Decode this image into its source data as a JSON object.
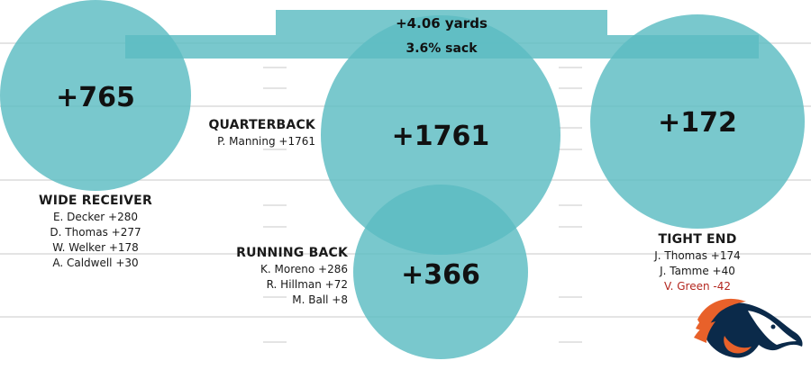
{
  "banner": {
    "yards": "+4.06 yards",
    "sack": "3.6% sack"
  },
  "groups": [
    {
      "key": "wr",
      "value": "+765",
      "heading": "WIDE RECEIVER",
      "players": [
        "E. Decker +280",
        "D. Thomas +277",
        "W. Welker +178",
        "A. Caldwell +30"
      ]
    },
    {
      "key": "qb",
      "value": "+1761",
      "heading": "QUARTERBACK",
      "players": [
        "P. Manning +1761"
      ]
    },
    {
      "key": "rb",
      "value": "+366",
      "heading": "RUNNING BACK",
      "players": [
        "K. Moreno +286",
        "R. Hillman +72",
        "M. Ball +8"
      ]
    },
    {
      "key": "te",
      "value": "+172",
      "heading": "TIGHT END",
      "players": [
        "J. Thomas +174",
        "J. Tamme +40"
      ],
      "negative_players": [
        "V. Green -42"
      ]
    }
  ],
  "colors": {
    "bubble": "#5bbcc2",
    "negative": "#b3261e",
    "field_line": "#d9d9d9"
  },
  "logo": "broncos-logo-icon"
}
